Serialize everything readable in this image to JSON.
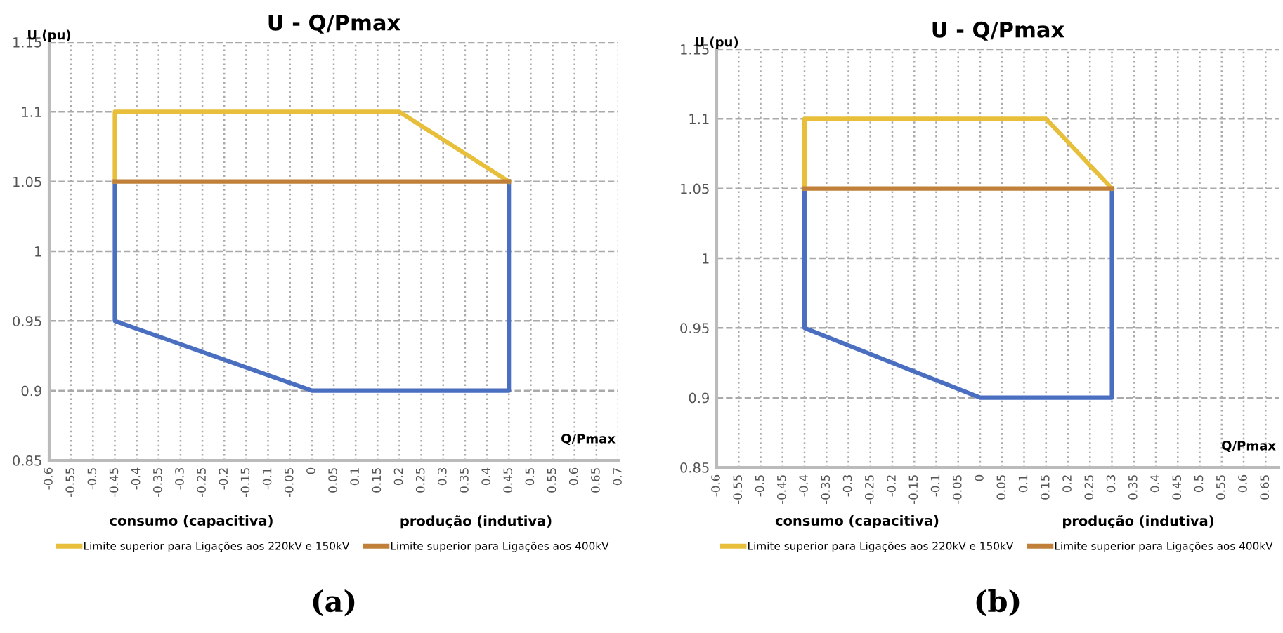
{
  "chart_data": [
    {
      "type": "line",
      "title": "U - Q/Pmax",
      "xlabel": "Q/Pmax",
      "ylabel": "U (pu)",
      "grid": true,
      "legend": "bottom",
      "line_style": "solid",
      "marker": "none",
      "xlim": [
        -0.6,
        0.7
      ],
      "xticks": [
        -0.6,
        -0.55,
        -0.5,
        -0.45,
        -0.4,
        -0.35,
        -0.3,
        -0.25,
        -0.2,
        -0.15,
        -0.1,
        -0.05,
        0,
        0.05,
        0.1,
        0.15,
        0.2,
        0.25,
        0.3,
        0.35,
        0.4,
        0.45,
        0.5,
        0.55,
        0.6,
        0.65,
        0.7
      ],
      "ylim": [
        0.85,
        1.15
      ],
      "yticks": [
        0.85,
        0.9,
        0.95,
        1,
        1.05,
        1.1,
        1.15
      ],
      "series": [
        {
          "color": "#4a6fc1",
          "x": [
            -0.45,
            -0.45,
            0,
            0.45,
            0.45
          ],
          "values": [
            1.05,
            0.95,
            0.9,
            0.9,
            1.05
          ]
        },
        {
          "name": "Limite superior para Ligações aos 220kV e 150kV",
          "color": "#e8bf3a",
          "x": [
            -0.45,
            -0.45,
            0.2,
            0.45
          ],
          "values": [
            1.05,
            1.1,
            1.1,
            1.05
          ]
        },
        {
          "name": "Limite superior para Ligações aos 400kV",
          "color": "#c0803a",
          "x": [
            -0.45,
            0.45
          ],
          "values": [
            1.05,
            1.05
          ]
        }
      ],
      "annotations": [
        "consumo (capacitiva)",
        "produção (indutiva)",
        "(a)"
      ]
    },
    {
      "type": "line",
      "title": "U - Q/Pmax",
      "xlabel": "Q/Pmax",
      "ylabel": "U (pu)",
      "grid": true,
      "legend": "bottom",
      "line_style": "solid",
      "marker": "none",
      "xlim": [
        -0.6,
        0.68
      ],
      "xticks": [
        -0.6,
        -0.55,
        -0.5,
        -0.45,
        -0.4,
        -0.35,
        -0.3,
        -0.25,
        -0.2,
        -0.15,
        -0.1,
        -0.05,
        0,
        0.05,
        0.1,
        0.15,
        0.2,
        0.25,
        0.3,
        0.35,
        0.4,
        0.45,
        0.5,
        0.55,
        0.6,
        0.65
      ],
      "ylim": [
        0.85,
        1.15
      ],
      "yticks": [
        0.85,
        0.9,
        0.95,
        1,
        1.05,
        1.1,
        1.15
      ],
      "series": [
        {
          "color": "#4a6fc1",
          "x": [
            -0.4,
            -0.4,
            0,
            0.3,
            0.3
          ],
          "values": [
            1.05,
            0.95,
            0.9,
            0.9,
            1.05
          ]
        },
        {
          "name": "Limite superior para Ligações aos 220kV e 150kV",
          "color": "#e8bf3a",
          "x": [
            -0.4,
            -0.4,
            0.15,
            0.3
          ],
          "values": [
            1.05,
            1.1,
            1.1,
            1.05
          ]
        },
        {
          "name": "Limite superior para Ligações aos 400kV",
          "color": "#c0803a",
          "x": [
            -0.4,
            0.3
          ],
          "values": [
            1.05,
            1.05
          ]
        }
      ],
      "annotations": [
        "consumo (capacitiva)",
        "produção (indutiva)",
        "(b)"
      ]
    }
  ]
}
